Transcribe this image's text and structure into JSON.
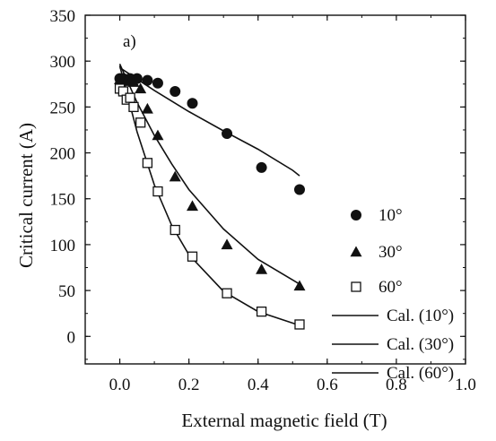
{
  "chart_data": {
    "type": "scatter",
    "panel_label": "a)",
    "xlabel": "External magnetic field (T)",
    "ylabel": "Critical current (A)",
    "xlim": [
      -0.1,
      1.0
    ],
    "ylim": [
      -30,
      350
    ],
    "xticks": [
      "0.0",
      "0.2",
      "0.4",
      "0.6",
      "0.8",
      "1.0"
    ],
    "yticks": [
      "0",
      "50",
      "100",
      "150",
      "200",
      "250",
      "300",
      "350"
    ],
    "xtick_values": [
      0.0,
      0.2,
      0.4,
      0.6,
      0.8,
      1.0
    ],
    "ytick_values": [
      0,
      50,
      100,
      150,
      200,
      250,
      300,
      350
    ],
    "grid": false,
    "legend_position": "right",
    "series": [
      {
        "name": "10°",
        "marker": "circle",
        "x": [
          0.0,
          0.01,
          0.03,
          0.05,
          0.08,
          0.11,
          0.16,
          0.21,
          0.31,
          0.41,
          0.52
        ],
        "y": [
          281,
          281,
          281,
          281,
          279,
          276,
          267,
          254,
          221,
          184,
          160
        ]
      },
      {
        "name": "30°",
        "marker": "triangle",
        "x": [
          0.0,
          0.01,
          0.02,
          0.03,
          0.04,
          0.06,
          0.08,
          0.11,
          0.16,
          0.21,
          0.31,
          0.41,
          0.52
        ],
        "y": [
          280,
          280,
          279,
          278,
          277,
          270,
          248,
          219,
          174,
          142,
          100,
          73,
          55
        ]
      },
      {
        "name": "60°",
        "marker": "open-square",
        "x": [
          0.0,
          0.01,
          0.02,
          0.03,
          0.04,
          0.06,
          0.08,
          0.11,
          0.16,
          0.21,
          0.31,
          0.41,
          0.52
        ],
        "y": [
          270,
          267,
          258,
          260,
          250,
          233,
          189,
          158,
          116,
          87,
          47,
          27,
          13
        ]
      },
      {
        "name": "Cal. (10°)",
        "marker": "line",
        "x": [
          0.0,
          0.1,
          0.2,
          0.3,
          0.4,
          0.5,
          0.52
        ],
        "y": [
          293,
          268,
          245,
          224,
          204,
          181,
          175
        ]
      },
      {
        "name": "Cal. (30°)",
        "marker": "line",
        "x": [
          0.0,
          0.05,
          0.1,
          0.15,
          0.2,
          0.3,
          0.4,
          0.52
        ],
        "y": [
          297,
          255,
          219,
          188,
          160,
          117,
          84,
          57
        ]
      },
      {
        "name": "Cal. (60°)",
        "marker": "line",
        "x": [
          0.0,
          0.05,
          0.1,
          0.15,
          0.2,
          0.3,
          0.4,
          0.52
        ],
        "y": [
          295,
          223,
          165,
          121,
          89,
          49,
          27,
          12
        ]
      }
    ]
  }
}
